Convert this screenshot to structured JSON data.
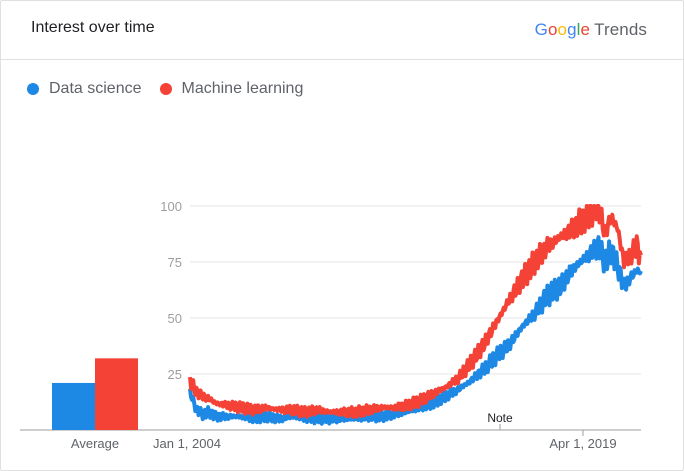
{
  "header": {
    "title": "Interest over time",
    "brand_letters": [
      {
        "ch": "G",
        "color": "#4285F4"
      },
      {
        "ch": "o",
        "color": "#EA4335"
      },
      {
        "ch": "o",
        "color": "#FBBC05"
      },
      {
        "ch": "g",
        "color": "#4285F4"
      },
      {
        "ch": "l",
        "color": "#34A853"
      },
      {
        "ch": "e",
        "color": "#EA4335"
      }
    ],
    "brand_suffix": "Trends"
  },
  "legend": [
    {
      "label": "Data science",
      "color": "#1E88E5"
    },
    {
      "label": "Machine learning",
      "color": "#F44336"
    }
  ],
  "average_label": "Average",
  "note_label": "Note",
  "chart_data": {
    "type": "line",
    "title": "Interest over time",
    "ylim": [
      0,
      100
    ],
    "yticks": [
      25,
      50,
      75,
      100
    ],
    "x_labels": [
      "Jan 1, 2004",
      "Apr 1, 2019"
    ],
    "x_range": [
      "2004-01",
      "2021-09"
    ],
    "averages": {
      "Data science": 21,
      "Machine learning": 32
    },
    "series": [
      {
        "name": "Data science",
        "color": "#1E88E5",
        "points": [
          [
            "2004-01",
            17
          ],
          [
            "2004-04",
            9
          ],
          [
            "2004-07",
            7
          ],
          [
            "2004-10",
            8
          ],
          [
            "2005-01",
            6
          ],
          [
            "2005-07",
            6
          ],
          [
            "2006-01",
            6
          ],
          [
            "2006-07",
            5
          ],
          [
            "2007-01",
            6
          ],
          [
            "2007-07",
            5
          ],
          [
            "2008-01",
            6
          ],
          [
            "2008-07",
            5
          ],
          [
            "2009-01",
            5
          ],
          [
            "2009-07",
            5
          ],
          [
            "2010-01",
            5
          ],
          [
            "2010-07",
            5
          ],
          [
            "2011-01",
            6
          ],
          [
            "2011-07",
            6
          ],
          [
            "2012-01",
            7
          ],
          [
            "2012-07",
            8
          ],
          [
            "2013-01",
            10
          ],
          [
            "2013-07",
            12
          ],
          [
            "2014-01",
            15
          ],
          [
            "2014-07",
            18
          ],
          [
            "2015-01",
            22
          ],
          [
            "2015-07",
            27
          ],
          [
            "2016-01",
            33
          ],
          [
            "2016-07",
            38
          ],
          [
            "2017-01",
            46
          ],
          [
            "2017-07",
            52
          ],
          [
            "2018-01",
            60
          ],
          [
            "2018-07",
            64
          ],
          [
            "2019-01",
            72
          ],
          [
            "2019-07",
            77
          ],
          [
            "2020-01",
            82
          ],
          [
            "2020-04",
            75
          ],
          [
            "2020-07",
            80
          ],
          [
            "2020-10",
            73
          ],
          [
            "2021-01",
            64
          ],
          [
            "2021-04",
            68
          ],
          [
            "2021-07",
            71
          ],
          [
            "2021-09",
            71
          ]
        ]
      },
      {
        "name": "Machine learning",
        "color": "#F44336",
        "points": [
          [
            "2004-01",
            22
          ],
          [
            "2004-04",
            17
          ],
          [
            "2004-07",
            15
          ],
          [
            "2004-10",
            14
          ],
          [
            "2005-01",
            12
          ],
          [
            "2005-07",
            11
          ],
          [
            "2006-01",
            10
          ],
          [
            "2006-07",
            9
          ],
          [
            "2007-01",
            10
          ],
          [
            "2007-07",
            9
          ],
          [
            "2008-01",
            9
          ],
          [
            "2008-07",
            8
          ],
          [
            "2009-01",
            9
          ],
          [
            "2009-07",
            8
          ],
          [
            "2010-01",
            8
          ],
          [
            "2010-07",
            8
          ],
          [
            "2011-01",
            9
          ],
          [
            "2011-07",
            10
          ],
          [
            "2012-01",
            10
          ],
          [
            "2012-07",
            11
          ],
          [
            "2013-01",
            13
          ],
          [
            "2013-07",
            16
          ],
          [
            "2014-01",
            19
          ],
          [
            "2014-07",
            23
          ],
          [
            "2015-01",
            30
          ],
          [
            "2015-07",
            38
          ],
          [
            "2016-01",
            48
          ],
          [
            "2016-07",
            58
          ],
          [
            "2017-01",
            67
          ],
          [
            "2017-07",
            75
          ],
          [
            "2018-01",
            82
          ],
          [
            "2018-07",
            86
          ],
          [
            "2019-01",
            90
          ],
          [
            "2019-07",
            95
          ],
          [
            "2020-01",
            100
          ],
          [
            "2020-04",
            88
          ],
          [
            "2020-07",
            95
          ],
          [
            "2020-10",
            90
          ],
          [
            "2021-01",
            75
          ],
          [
            "2021-04",
            78
          ],
          [
            "2021-07",
            82
          ],
          [
            "2021-09",
            78
          ]
        ]
      }
    ]
  }
}
